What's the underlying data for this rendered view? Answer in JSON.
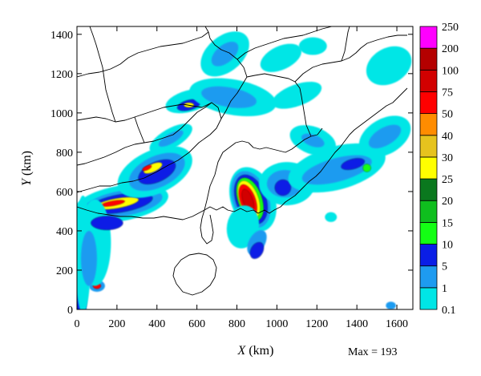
{
  "chart_data": {
    "type": "heatmap",
    "title": "",
    "xlabel": "X (km)",
    "xlabel_var": "X",
    "xlabel_unit": "(km)",
    "ylabel": "Y (km)",
    "ylabel_var": "Y",
    "ylabel_unit": "(km)",
    "xlim": [
      0,
      1680
    ],
    "ylim": [
      0,
      1440
    ],
    "xticks": [
      0,
      200,
      400,
      600,
      800,
      1000,
      1200,
      1400,
      1600
    ],
    "yticks": [
      0,
      200,
      400,
      600,
      800,
      1000,
      1200,
      1400
    ],
    "max_text": "Max = 193",
    "max_value": 193,
    "colorbar": {
      "levels": [
        "0.1",
        "1",
        "5",
        "10",
        "15",
        "20",
        "25",
        "30",
        "40",
        "50",
        "75",
        "100",
        "200",
        "250"
      ],
      "colors": [
        "#00e6e6",
        "#1e9bf0",
        "#0a1ee6",
        "#14ff14",
        "#0fbe1e",
        "#0a781e",
        "#ffff00",
        "#e6c31e",
        "#ff8c00",
        "#ff0000",
        "#d20000",
        "#b40000",
        "#ff00ff"
      ]
    },
    "rain_regions": [
      {
        "x": 880,
        "y": 560,
        "rx": 110,
        "ry": 170,
        "level": 0,
        "rot": -20
      },
      {
        "x": 870,
        "y": 560,
        "rx": 90,
        "ry": 150,
        "level": 1,
        "rot": -20
      },
      {
        "x": 870,
        "y": 560,
        "rx": 75,
        "ry": 130,
        "level": 2,
        "rot": -20
      },
      {
        "x": 865,
        "y": 560,
        "rx": 60,
        "ry": 115,
        "level": 3,
        "rot": -20
      },
      {
        "x": 860,
        "y": 560,
        "rx": 48,
        "ry": 100,
        "level": 6,
        "rot": -20
      },
      {
        "x": 855,
        "y": 555,
        "rx": 38,
        "ry": 85,
        "level": 9,
        "rot": -20
      },
      {
        "x": 855,
        "y": 555,
        "rx": 25,
        "ry": 60,
        "level": 10,
        "rot": -20
      },
      {
        "x": 830,
        "y": 420,
        "rx": 80,
        "ry": 110,
        "level": 0,
        "rot": 10
      },
      {
        "x": 900,
        "y": 340,
        "rx": 40,
        "ry": 70,
        "level": 1,
        "rot": 30
      },
      {
        "x": 900,
        "y": 300,
        "rx": 30,
        "ry": 45,
        "level": 2,
        "rot": 30
      },
      {
        "x": 1050,
        "y": 640,
        "rx": 140,
        "ry": 110,
        "level": 0,
        "rot": 0
      },
      {
        "x": 1040,
        "y": 640,
        "rx": 90,
        "ry": 70,
        "level": 1,
        "rot": 0
      },
      {
        "x": 1030,
        "y": 620,
        "rx": 40,
        "ry": 40,
        "level": 2,
        "rot": 0
      },
      {
        "x": 1300,
        "y": 720,
        "rx": 250,
        "ry": 110,
        "level": 0,
        "rot": -15
      },
      {
        "x": 1300,
        "y": 710,
        "rx": 180,
        "ry": 60,
        "level": 1,
        "rot": -15
      },
      {
        "x": 1380,
        "y": 740,
        "rx": 60,
        "ry": 25,
        "level": 2,
        "rot": -15
      },
      {
        "x": 1450,
        "y": 720,
        "rx": 20,
        "ry": 20,
        "level": 3,
        "rot": 0
      },
      {
        "x": 1540,
        "y": 880,
        "rx": 140,
        "ry": 90,
        "level": 0,
        "rot": -30
      },
      {
        "x": 1540,
        "y": 880,
        "rx": 90,
        "ry": 45,
        "level": 1,
        "rot": -30
      },
      {
        "x": 1180,
        "y": 860,
        "rx": 120,
        "ry": 70,
        "level": 0,
        "rot": 20
      },
      {
        "x": 1180,
        "y": 860,
        "rx": 60,
        "ry": 30,
        "level": 1,
        "rot": 20
      },
      {
        "x": 220,
        "y": 540,
        "rx": 240,
        "ry": 90,
        "level": 0,
        "rot": -10
      },
      {
        "x": 230,
        "y": 540,
        "rx": 200,
        "ry": 65,
        "level": 1,
        "rot": -10
      },
      {
        "x": 220,
        "y": 540,
        "rx": 160,
        "ry": 45,
        "level": 2,
        "rot": -10
      },
      {
        "x": 200,
        "y": 540,
        "rx": 110,
        "ry": 25,
        "level": 6,
        "rot": -10
      },
      {
        "x": 180,
        "y": 540,
        "rx": 60,
        "ry": 12,
        "level": 9,
        "rot": -10
      },
      {
        "x": 390,
        "y": 700,
        "rx": 200,
        "ry": 110,
        "level": 0,
        "rot": -25
      },
      {
        "x": 400,
        "y": 700,
        "rx": 150,
        "ry": 80,
        "level": 1,
        "rot": -25
      },
      {
        "x": 400,
        "y": 700,
        "rx": 100,
        "ry": 50,
        "level": 2,
        "rot": -25
      },
      {
        "x": 380,
        "y": 720,
        "rx": 50,
        "ry": 20,
        "level": 6,
        "rot": -25
      },
      {
        "x": 350,
        "y": 720,
        "rx": 25,
        "ry": 10,
        "level": 9,
        "rot": -25
      },
      {
        "x": 470,
        "y": 870,
        "rx": 120,
        "ry": 50,
        "level": 0,
        "rot": -30
      },
      {
        "x": 470,
        "y": 870,
        "rx": 70,
        "ry": 25,
        "level": 1,
        "rot": -30
      },
      {
        "x": 560,
        "y": 1060,
        "rx": 120,
        "ry": 55,
        "level": 0,
        "rot": -15
      },
      {
        "x": 560,
        "y": 1040,
        "rx": 60,
        "ry": 25,
        "level": 2,
        "rot": -15
      },
      {
        "x": 560,
        "y": 1040,
        "rx": 25,
        "ry": 12,
        "level": 6,
        "rot": 0
      },
      {
        "x": 780,
        "y": 1080,
        "rx": 220,
        "ry": 90,
        "level": 0,
        "rot": 10
      },
      {
        "x": 760,
        "y": 1080,
        "rx": 140,
        "ry": 50,
        "level": 1,
        "rot": 10
      },
      {
        "x": 740,
        "y": 1300,
        "rx": 140,
        "ry": 90,
        "level": 0,
        "rot": -40
      },
      {
        "x": 740,
        "y": 1300,
        "rx": 80,
        "ry": 45,
        "level": 1,
        "rot": -40
      },
      {
        "x": 1020,
        "y": 1280,
        "rx": 110,
        "ry": 60,
        "level": 0,
        "rot": -25
      },
      {
        "x": 1100,
        "y": 1090,
        "rx": 130,
        "ry": 55,
        "level": 0,
        "rot": -20
      },
      {
        "x": 1560,
        "y": 1240,
        "rx": 120,
        "ry": 90,
        "level": 0,
        "rot": -30
      },
      {
        "x": 1180,
        "y": 1340,
        "rx": 70,
        "ry": 45,
        "level": 0,
        "rot": 0
      },
      {
        "x": 20,
        "y": 70,
        "rx": 30,
        "ry": 130,
        "level": 2,
        "rot": 0
      },
      {
        "x": 100,
        "y": 120,
        "rx": 40,
        "ry": 30,
        "level": 1,
        "rot": 0
      },
      {
        "x": 100,
        "y": 120,
        "rx": 20,
        "ry": 15,
        "level": 9,
        "rot": 0
      },
      {
        "x": 30,
        "y": 280,
        "rx": 40,
        "ry": 300,
        "level": 0,
        "rot": 0
      },
      {
        "x": 90,
        "y": 340,
        "rx": 80,
        "ry": 220,
        "level": 0,
        "rot": 0
      },
      {
        "x": 60,
        "y": 260,
        "rx": 40,
        "ry": 140,
        "level": 1,
        "rot": 0
      },
      {
        "x": 150,
        "y": 440,
        "rx": 80,
        "ry": 35,
        "level": 2,
        "rot": 0
      },
      {
        "x": 1570,
        "y": 20,
        "rx": 25,
        "ry": 20,
        "level": 1,
        "rot": 0
      },
      {
        "x": 1270,
        "y": 470,
        "rx": 30,
        "ry": 25,
        "level": 0,
        "rot": 0
      }
    ]
  }
}
